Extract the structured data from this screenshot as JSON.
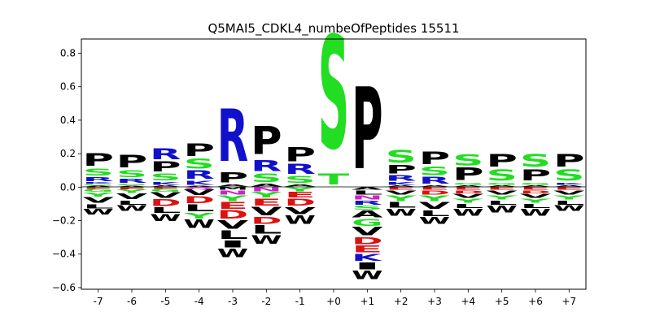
{
  "chart_data": {
    "type": "sequence-logo",
    "title": "Q5MAI5_CDKL4_numbeOfPeptides 15511",
    "xlabel": "",
    "ylabel": "",
    "ylim": [
      -0.61,
      0.885
    ],
    "grid": false,
    "y_ticks": [
      "−0.6",
      "−0.4",
      "−0.2",
      "0.0",
      "0.2",
      "0.4",
      "0.6",
      "0.8"
    ],
    "y_tick_values": [
      -0.6,
      -0.4,
      -0.2,
      0.0,
      0.2,
      0.4,
      0.6,
      0.8
    ],
    "positions": [
      "-7",
      "-6",
      "-5",
      "-4",
      "-3",
      "-2",
      "-1",
      "+0",
      "+1",
      "+2",
      "+3",
      "+4",
      "+5",
      "+6",
      "+7"
    ],
    "colors": {
      "P": "#000000",
      "S": "#22dd22",
      "R": "#1111cc",
      "K": "#1111cc",
      "T": "#22dd22",
      "G": "#22dd22",
      "A": "#000000",
      "E": "#dd1111",
      "D": "#dd1111",
      "V": "#000000",
      "L": "#000000",
      "I": "#000000",
      "F": "#000000",
      "Y": "#22dd22",
      "N": "#cc22cc",
      "Q": "#cc22cc",
      "M": "#000000",
      "H": "#1111cc",
      "W": "#000000",
      "C": "#22dd22"
    },
    "stacks": [
      {
        "pos": "-7",
        "positive": [
          {
            "aa": "A",
            "h": 0.008
          },
          {
            "aa": "G",
            "h": 0.01
          },
          {
            "aa": "K",
            "h": 0.012
          },
          {
            "aa": "R",
            "h": 0.03
          },
          {
            "aa": "S",
            "h": 0.05
          },
          {
            "aa": "P",
            "h": 0.09
          }
        ],
        "negative": [
          {
            "aa": "E",
            "h": 0.012
          },
          {
            "aa": "G",
            "h": 0.02
          },
          {
            "aa": "Y",
            "h": 0.03
          },
          {
            "aa": "V",
            "h": 0.04
          },
          {
            "aa": "L",
            "h": 0.03
          },
          {
            "aa": "W",
            "h": 0.04
          }
        ]
      },
      {
        "pos": "-6",
        "positive": [
          {
            "aa": "A",
            "h": 0.008
          },
          {
            "aa": "G",
            "h": 0.012
          },
          {
            "aa": "R",
            "h": 0.03
          },
          {
            "aa": "S",
            "h": 0.05
          },
          {
            "aa": "P",
            "h": 0.09
          }
        ],
        "negative": [
          {
            "aa": "E",
            "h": 0.015
          },
          {
            "aa": "Y",
            "h": 0.025
          },
          {
            "aa": "V",
            "h": 0.04
          },
          {
            "aa": "L",
            "h": 0.03
          },
          {
            "aa": "W",
            "h": 0.04
          }
        ]
      },
      {
        "pos": "-5",
        "positive": [
          {
            "aa": "A",
            "h": 0.01
          },
          {
            "aa": "K",
            "h": 0.02
          },
          {
            "aa": "S",
            "h": 0.05
          },
          {
            "aa": "P",
            "h": 0.07
          },
          {
            "aa": "R",
            "h": 0.08
          }
        ],
        "negative": [
          {
            "aa": "E",
            "h": 0.012
          },
          {
            "aa": "G",
            "h": 0.02
          },
          {
            "aa": "V",
            "h": 0.04
          },
          {
            "aa": "D",
            "h": 0.05
          },
          {
            "aa": "L",
            "h": 0.04
          },
          {
            "aa": "W",
            "h": 0.05
          }
        ]
      },
      {
        "pos": "-4",
        "positive": [
          {
            "aa": "A",
            "h": 0.008
          },
          {
            "aa": "K",
            "h": 0.03
          },
          {
            "aa": "R",
            "h": 0.06
          },
          {
            "aa": "S",
            "h": 0.07
          },
          {
            "aa": "P",
            "h": 0.09
          }
        ],
        "negative": [
          {
            "aa": "Q",
            "h": 0.015
          },
          {
            "aa": "V",
            "h": 0.04
          },
          {
            "aa": "D",
            "h": 0.05
          },
          {
            "aa": "L",
            "h": 0.05
          },
          {
            "aa": "Y",
            "h": 0.04
          },
          {
            "aa": "W",
            "h": 0.06
          }
        ]
      },
      {
        "pos": "-3",
        "positive": [
          {
            "aa": "A",
            "h": 0.015
          },
          {
            "aa": "P",
            "h": 0.07
          },
          {
            "aa": "R",
            "h": 0.37
          }
        ],
        "negative": [
          {
            "aa": "M",
            "h": 0.02
          },
          {
            "aa": "N",
            "h": 0.03
          },
          {
            "aa": "Y",
            "h": 0.04
          },
          {
            "aa": "E",
            "h": 0.05
          },
          {
            "aa": "D",
            "h": 0.06
          },
          {
            "aa": "V",
            "h": 0.06
          },
          {
            "aa": "L",
            "h": 0.06
          },
          {
            "aa": "I",
            "h": 0.05
          },
          {
            "aa": "W",
            "h": 0.06
          }
        ]
      },
      {
        "pos": "-2",
        "positive": [
          {
            "aa": "A",
            "h": 0.02
          },
          {
            "aa": "S",
            "h": 0.06
          },
          {
            "aa": "R",
            "h": 0.08
          },
          {
            "aa": "P",
            "h": 0.2
          }
        ],
        "negative": [
          {
            "aa": "N",
            "h": 0.03
          },
          {
            "aa": "Y",
            "h": 0.04
          },
          {
            "aa": "E",
            "h": 0.05
          },
          {
            "aa": "V",
            "h": 0.06
          },
          {
            "aa": "D",
            "h": 0.05
          },
          {
            "aa": "L",
            "h": 0.06
          },
          {
            "aa": "W",
            "h": 0.06
          }
        ]
      },
      {
        "pos": "-1",
        "positive": [
          {
            "aa": "A",
            "h": 0.015
          },
          {
            "aa": "S",
            "h": 0.05
          },
          {
            "aa": "R",
            "h": 0.07
          },
          {
            "aa": "P",
            "h": 0.1
          }
        ],
        "negative": [
          {
            "aa": "Y",
            "h": 0.03
          },
          {
            "aa": "E",
            "h": 0.04
          },
          {
            "aa": "D",
            "h": 0.05
          },
          {
            "aa": "V",
            "h": 0.05
          },
          {
            "aa": "W",
            "h": 0.06
          }
        ]
      },
      {
        "pos": "+0",
        "positive": [
          {
            "aa": "T",
            "h": 0.08
          },
          {
            "aa": "S",
            "h": 0.8
          }
        ],
        "negative": []
      },
      {
        "pos": "+1",
        "positive": [
          {
            "aa": "P",
            "h": 0.58
          }
        ],
        "negative": [
          {
            "aa": "A",
            "h": 0.02
          },
          {
            "aa": "L",
            "h": 0.03
          },
          {
            "aa": "N",
            "h": 0.03
          },
          {
            "aa": "R",
            "h": 0.03
          },
          {
            "aa": "S",
            "h": 0.03
          },
          {
            "aa": "A",
            "h": 0.05
          },
          {
            "aa": "G",
            "h": 0.05
          },
          {
            "aa": "V",
            "h": 0.06
          },
          {
            "aa": "D",
            "h": 0.05
          },
          {
            "aa": "E",
            "h": 0.05
          },
          {
            "aa": "K",
            "h": 0.05
          },
          {
            "aa": "I",
            "h": 0.05
          },
          {
            "aa": "W",
            "h": 0.06
          }
        ]
      },
      {
        "pos": "+2",
        "positive": [
          {
            "aa": "A",
            "h": 0.01
          },
          {
            "aa": "K",
            "h": 0.02
          },
          {
            "aa": "R",
            "h": 0.04
          },
          {
            "aa": "P",
            "h": 0.06
          },
          {
            "aa": "S",
            "h": 0.09
          }
        ],
        "negative": [
          {
            "aa": "E",
            "h": 0.02
          },
          {
            "aa": "V",
            "h": 0.03
          },
          {
            "aa": "Y",
            "h": 0.04
          },
          {
            "aa": "L",
            "h": 0.04
          },
          {
            "aa": "W",
            "h": 0.05
          }
        ]
      },
      {
        "pos": "+3",
        "positive": [
          {
            "aa": "A",
            "h": 0.01
          },
          {
            "aa": "R",
            "h": 0.05
          },
          {
            "aa": "S",
            "h": 0.06
          },
          {
            "aa": "P",
            "h": 0.09
          }
        ],
        "negative": [
          {
            "aa": "E",
            "h": 0.02
          },
          {
            "aa": "D",
            "h": 0.03
          },
          {
            "aa": "Y",
            "h": 0.04
          },
          {
            "aa": "V",
            "h": 0.05
          },
          {
            "aa": "L",
            "h": 0.04
          },
          {
            "aa": "W",
            "h": 0.05
          }
        ]
      },
      {
        "pos": "+4",
        "positive": [
          {
            "aa": "A",
            "h": 0.01
          },
          {
            "aa": "G",
            "h": 0.015
          },
          {
            "aa": "P",
            "h": 0.09
          },
          {
            "aa": "S",
            "h": 0.08
          }
        ],
        "negative": [
          {
            "aa": "E",
            "h": 0.02
          },
          {
            "aa": "D",
            "h": 0.02
          },
          {
            "aa": "V",
            "h": 0.03
          },
          {
            "aa": "Y",
            "h": 0.03
          },
          {
            "aa": "L",
            "h": 0.03
          },
          {
            "aa": "W",
            "h": 0.05
          }
        ]
      },
      {
        "pos": "+5",
        "positive": [
          {
            "aa": "A",
            "h": 0.01
          },
          {
            "aa": "G",
            "h": 0.015
          },
          {
            "aa": "S",
            "h": 0.08
          },
          {
            "aa": "P",
            "h": 0.09
          }
        ],
        "negative": [
          {
            "aa": "E",
            "h": 0.02
          },
          {
            "aa": "V",
            "h": 0.03
          },
          {
            "aa": "Y",
            "h": 0.03
          },
          {
            "aa": "L",
            "h": 0.03
          },
          {
            "aa": "W",
            "h": 0.05
          }
        ]
      },
      {
        "pos": "+6",
        "positive": [
          {
            "aa": "A",
            "h": 0.01
          },
          {
            "aa": "G",
            "h": 0.015
          },
          {
            "aa": "P",
            "h": 0.08
          },
          {
            "aa": "S",
            "h": 0.09
          }
        ],
        "negative": [
          {
            "aa": "E",
            "h": 0.02
          },
          {
            "aa": "D",
            "h": 0.02
          },
          {
            "aa": "V",
            "h": 0.03
          },
          {
            "aa": "Y",
            "h": 0.03
          },
          {
            "aa": "L",
            "h": 0.03
          },
          {
            "aa": "W",
            "h": 0.05
          }
        ]
      },
      {
        "pos": "+7",
        "positive": [
          {
            "aa": "A",
            "h": 0.01
          },
          {
            "aa": "K",
            "h": 0.015
          },
          {
            "aa": "S",
            "h": 0.08
          },
          {
            "aa": "P",
            "h": 0.09
          }
        ],
        "negative": [
          {
            "aa": "E",
            "h": 0.02
          },
          {
            "aa": "V",
            "h": 0.03
          },
          {
            "aa": "Y",
            "h": 0.03
          },
          {
            "aa": "L",
            "h": 0.03
          },
          {
            "aa": "W",
            "h": 0.04
          }
        ]
      }
    ]
  }
}
